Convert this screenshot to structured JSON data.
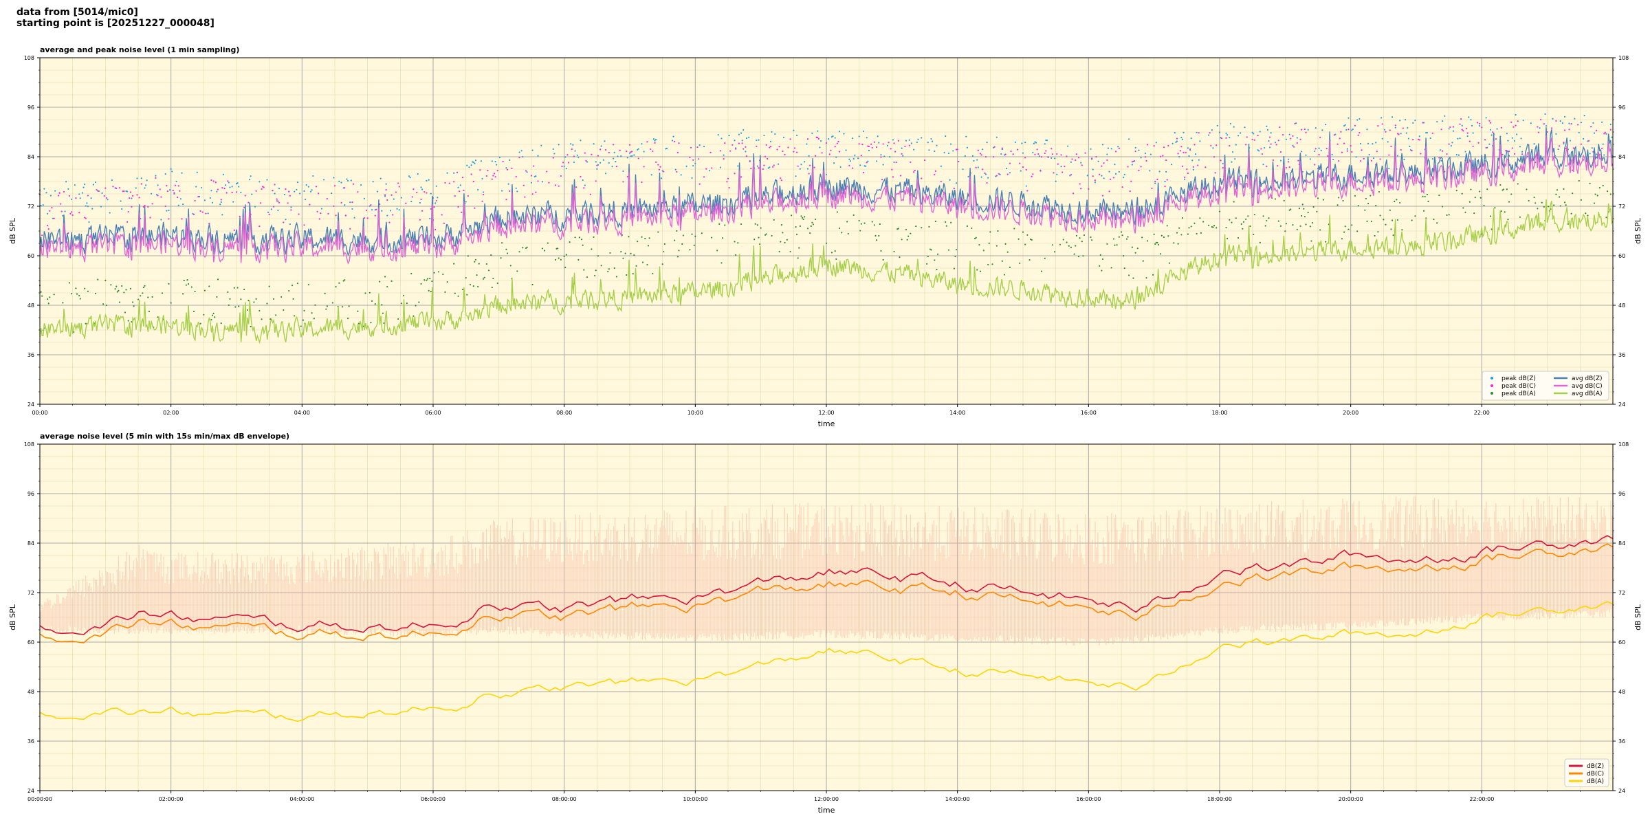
{
  "header": {
    "line1": "data from [5014/mic0]",
    "line2": "starting point is [20251227_000048]"
  },
  "colors": {
    "plot_bg": "#fff8dc",
    "peak_z": "#1f9fe0",
    "peak_c": "#ff22dd",
    "peak_a": "#2e8b2e",
    "avg_z": "#4a7fb5",
    "avg_c": "#e066d4",
    "avg_a": "#a6cf4a",
    "z5": "#d6153c",
    "c5": "#ff8800",
    "a5": "#ffd400",
    "envelope": "#f7b7a3"
  },
  "chart_data": [
    {
      "type": "line",
      "title": "average and peak noise level (1 min sampling)",
      "xlabel": "time",
      "ylabel": "dB SPL",
      "ylim": [
        24,
        108
      ],
      "yticks": [
        24,
        36,
        48,
        60,
        72,
        84,
        96,
        108
      ],
      "xlim_hours": [
        0,
        24
      ],
      "xticks": [
        "00:00",
        "02:00",
        "04:00",
        "06:00",
        "08:00",
        "10:00",
        "12:00",
        "14:00",
        "16:00",
        "18:00",
        "20:00",
        "22:00"
      ],
      "grid": true,
      "legend_position": "bottom-right",
      "sampling": "1 min",
      "series": [
        {
          "name": "peak dB(Z)",
          "kind": "scatter",
          "color_key": "peak_z",
          "x_hours": [
            0,
            2,
            4,
            6,
            7,
            8,
            10,
            12,
            14,
            16,
            17,
            18,
            20,
            22,
            24
          ],
          "values": [
            77,
            80,
            78,
            79,
            85,
            87,
            89,
            90,
            88,
            87,
            88,
            91,
            92,
            93,
            93
          ]
        },
        {
          "name": "peak dB(C)",
          "kind": "scatter",
          "color_key": "peak_c",
          "x_hours": [
            0,
            2,
            4,
            6,
            7,
            8,
            10,
            12,
            14,
            16,
            17,
            18,
            20,
            22,
            24
          ],
          "values": [
            74,
            78,
            76,
            77,
            82,
            85,
            87,
            88,
            86,
            85,
            86,
            90,
            91,
            92,
            92
          ]
        },
        {
          "name": "peak dB(A)",
          "kind": "scatter",
          "color_key": "peak_a",
          "x_hours": [
            0,
            2,
            4,
            6,
            7,
            8,
            10,
            12,
            14,
            16,
            17,
            18,
            20,
            22,
            24
          ],
          "values": [
            52,
            54,
            52,
            55,
            62,
            63,
            66,
            70,
            67,
            65,
            65,
            73,
            74,
            76,
            77
          ]
        },
        {
          "name": "avg dB(Z)",
          "kind": "line",
          "color_key": "avg_z",
          "x_hours": [
            0,
            1,
            2,
            3,
            4,
            5,
            6,
            6.5,
            7,
            8,
            9,
            10,
            11,
            12,
            13,
            14,
            15,
            16,
            16.5,
            17,
            18,
            19,
            20,
            21,
            22,
            23,
            24
          ],
          "values": [
            64,
            64,
            65,
            64,
            64,
            64,
            64,
            66,
            69,
            70,
            71,
            72,
            74,
            77,
            76,
            74,
            73,
            71,
            70,
            72,
            78,
            78,
            80,
            80,
            82,
            84,
            85
          ]
        },
        {
          "name": "avg dB(C)",
          "kind": "line",
          "color_key": "avg_c",
          "x_hours": [
            0,
            1,
            2,
            3,
            4,
            5,
            6,
            6.5,
            7,
            8,
            9,
            10,
            11,
            12,
            13,
            14,
            15,
            16,
            16.5,
            17,
            18,
            19,
            20,
            21,
            22,
            23,
            24
          ],
          "values": [
            62,
            62,
            63,
            62,
            62,
            62,
            62,
            64,
            67,
            68,
            69,
            70,
            72,
            75,
            74,
            72,
            71,
            69,
            68,
            70,
            76,
            76,
            78,
            78,
            80,
            82,
            83
          ]
        },
        {
          "name": "avg dB(A)",
          "kind": "line",
          "color_key": "avg_a",
          "x_hours": [
            0,
            1,
            2,
            3,
            4,
            5,
            6,
            6.5,
            7,
            8,
            9,
            10,
            11,
            12,
            13,
            14,
            15,
            16,
            16.5,
            17,
            18,
            19,
            20,
            21,
            22,
            23,
            24
          ],
          "values": [
            42,
            43,
            43,
            42,
            42,
            43,
            44,
            45,
            48,
            49,
            50,
            51,
            54,
            58,
            56,
            53,
            52,
            50,
            48,
            52,
            60,
            60,
            62,
            62,
            65,
            68,
            69
          ]
        }
      ]
    },
    {
      "type": "line",
      "title": "average noise level (5 min with 15s min/max dB envelope)",
      "xlabel": "time",
      "ylabel": "dB SPL",
      "ylim": [
        24,
        108
      ],
      "yticks": [
        24,
        36,
        48,
        60,
        72,
        84,
        96,
        108
      ],
      "xlim_hours": [
        0,
        24
      ],
      "xticks": [
        "00:00:00",
        "02:00:00",
        "04:00:00",
        "06:00:00",
        "08:00:00",
        "10:00:00",
        "12:00:00",
        "14:00:00",
        "16:00:00",
        "18:00:00",
        "20:00:00",
        "22:00:00"
      ],
      "grid": true,
      "legend_position": "bottom-right",
      "envelope": {
        "color_key": "envelope",
        "x_hours": [
          0,
          1.5,
          2,
          4,
          6,
          7,
          8,
          10,
          12,
          14,
          16,
          17,
          18,
          20,
          22,
          24
        ],
        "min": [
          63,
          63,
          63,
          63,
          62,
          63,
          62,
          61,
          62,
          61,
          60,
          61,
          63,
          64,
          66,
          67
        ],
        "max": [
          70,
          84,
          82,
          82,
          85,
          90,
          91,
          93,
          94,
          93,
          92,
          92,
          94,
          95,
          96,
          95
        ]
      },
      "series": [
        {
          "name": "dB(Z)",
          "color_key": "z5",
          "x_hours": [
            0,
            1,
            1.5,
            2,
            3,
            4,
            5,
            6,
            6.5,
            6.9,
            7.2,
            8,
            9,
            10,
            11,
            12,
            13,
            14,
            15,
            16,
            16.8,
            17.5,
            18,
            19,
            20,
            21,
            22,
            23,
            24
          ],
          "values": [
            64,
            64,
            67,
            66,
            65,
            64,
            64,
            64,
            66,
            71,
            68,
            68,
            70,
            71,
            74,
            77,
            76,
            74,
            72,
            70,
            68,
            73,
            78,
            78,
            81,
            80,
            82,
            84,
            86
          ]
        },
        {
          "name": "dB(C)",
          "color_key": "c5",
          "x_hours": [
            0,
            1,
            1.5,
            2,
            3,
            4,
            5,
            6,
            6.5,
            6.9,
            7.2,
            8,
            9,
            10,
            11,
            12,
            13,
            14,
            15,
            16,
            16.8,
            17.5,
            18,
            19,
            20,
            21,
            22,
            23,
            24
          ],
          "values": [
            62,
            62,
            65,
            64,
            63,
            62,
            62,
            62,
            64,
            68,
            66,
            66,
            68,
            69,
            72,
            74,
            73,
            72,
            70,
            68,
            66,
            71,
            75,
            76,
            78,
            78,
            80,
            82,
            84
          ]
        },
        {
          "name": "dB(A)",
          "color_key": "a5",
          "x_hours": [
            0,
            1,
            1.5,
            2,
            3,
            4,
            5,
            6,
            6.5,
            6.9,
            7.2,
            8,
            9,
            10,
            11,
            12,
            13,
            14,
            15,
            16,
            16.8,
            17.5,
            18,
            19,
            20,
            21,
            22,
            23,
            24
          ],
          "values": [
            43,
            43,
            43,
            43,
            42,
            42,
            43,
            44,
            45,
            49,
            47,
            49,
            50,
            51,
            54,
            58,
            56,
            53,
            52,
            50,
            49,
            55,
            60,
            60,
            62,
            62,
            66,
            68,
            70
          ]
        }
      ]
    }
  ]
}
